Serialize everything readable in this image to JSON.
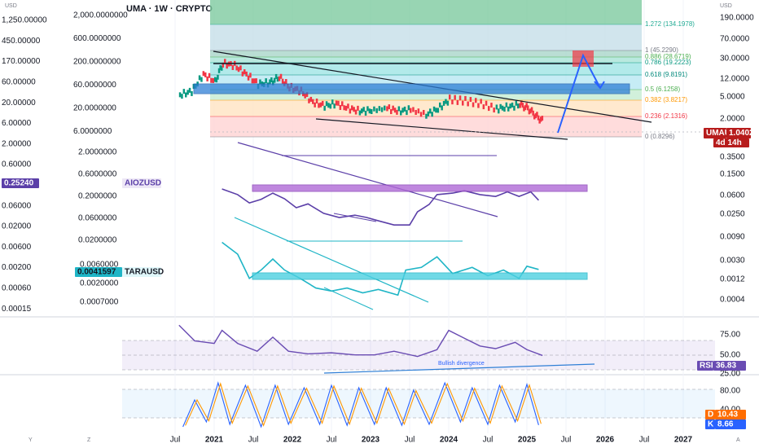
{
  "header": {
    "symbol_line": "UMA · 1W · CRYPTO"
  },
  "colors": {
    "uma_up": "#089981",
    "uma_down": "#f23645",
    "uma_line": "#131722",
    "aioz": "#5b3fa8",
    "tara": "#1fb5c6",
    "box_purple": "#b06ad6",
    "box_blue": "#2f7fd6",
    "rsi_line": "#6a4cb3",
    "stoch_k": "#2962ff",
    "stoch_d": "#ff9800",
    "target_red": "#f23645",
    "arrow_blue": "#2962ff"
  },
  "axes": {
    "left_units": "USD",
    "right_units": "USD",
    "left_outer_ticks": [
      "1,250.00000",
      "450.00000",
      "170.00000",
      "60.00000",
      "20.00000",
      "6.00000",
      "2.00000",
      "0.60000",
      "0.20000",
      "0.06000",
      "0.02000",
      "0.00600",
      "0.00200",
      "0.00060",
      "0.00015"
    ],
    "left_inner_ticks_uma": [
      "2,000.0000000",
      "600.0000000",
      "200.0000000",
      "60.0000000",
      "20.0000000",
      "6.0000000"
    ],
    "left_inner_ticks_aioz": [
      "2.0000000",
      "0.6000000",
      "0.2000000",
      "0.0600000",
      "0.0200000"
    ],
    "left_inner_ticks_tara": [
      "0.0060000",
      "0.0020000",
      "0.0007000"
    ],
    "right_ticks_main": [
      "190.0000",
      "70.0000",
      "30.0000",
      "12.0000",
      "5.0000",
      "2.0000",
      "0.3500",
      "0.1500",
      "0.0600",
      "0.0250",
      "0.0090",
      "0.0030",
      "0.0012",
      "0.0004"
    ],
    "rsi_ticks": [
      "75.00",
      "50.00",
      "25.00"
    ],
    "stoch_ticks": [
      "80.00",
      "40.00"
    ],
    "time_labels": [
      "Jul",
      "2021",
      "Jul",
      "2022",
      "Jul",
      "2023",
      "Jul",
      "2024",
      "Jul",
      "2025",
      "Jul",
      "2026",
      "Jul",
      "2027"
    ],
    "corner_left": [
      "Y",
      "Z"
    ],
    "corner_right": "A"
  },
  "badges": {
    "uma_name": "UMAUSD",
    "uma_price": "1.0402",
    "uma_countdown": "4d 14h",
    "aioz_name": "AIOZUSD",
    "aioz_price": "0.25240",
    "tara_name": "TARAUSD",
    "tara_price": "0.0041597",
    "rsi_name": "RSI",
    "rsi_value": "36.83",
    "stoch_d_name": "D",
    "stoch_d_value": "10.43",
    "stoch_k_name": "K",
    "stoch_k_value": "8.66"
  },
  "fib_levels": [
    {
      "label": "1.272 (134.1978)",
      "color": "#22ab94"
    },
    {
      "label": "1 (45.2290)",
      "color": "#787b86"
    },
    {
      "label": "0.886 (28.6719)",
      "color": "#4caf50"
    },
    {
      "label": "0.786 (19.2223)",
      "color": "#089981"
    },
    {
      "label": "0.618 (9.8191)",
      "color": "#00897b"
    },
    {
      "label": "0.5 (6.1258)",
      "color": "#4caf50"
    },
    {
      "label": "0.382 (3.8217)",
      "color": "#ff9800"
    },
    {
      "label": "0.236 (2.1316)",
      "color": "#f23645"
    },
    {
      "label": "0 (0.8296)",
      "color": "#787b86"
    }
  ],
  "annotations": {
    "rsi_divergence": "Bullish divergence"
  },
  "chart_data": {
    "type": "line",
    "x_unit": "weekly",
    "series": [
      {
        "name": "UMAUSD",
        "points": [
          [
            2020.55,
            5.5
          ],
          [
            2020.7,
            7
          ],
          [
            2020.85,
            20
          ],
          [
            2021.0,
            13
          ],
          [
            2021.1,
            40
          ],
          [
            2021.25,
            35
          ],
          [
            2021.4,
            20
          ],
          [
            2021.55,
            11
          ],
          [
            2021.7,
            12
          ],
          [
            2021.82,
            17
          ],
          [
            2021.95,
            9
          ],
          [
            2022.1,
            7
          ],
          [
            2022.25,
            3.5
          ],
          [
            2022.4,
            2.8
          ],
          [
            2022.55,
            3.2
          ],
          [
            2022.7,
            2.4
          ],
          [
            2022.85,
            2.0
          ],
          [
            2023.0,
            2.1
          ],
          [
            2023.2,
            2.4
          ],
          [
            2023.35,
            2.0
          ],
          [
            2023.5,
            2.2
          ],
          [
            2023.7,
            1.6
          ],
          [
            2023.85,
            2.3
          ],
          [
            2024.0,
            4.2
          ],
          [
            2024.2,
            3.8
          ],
          [
            2024.4,
            3.2
          ],
          [
            2024.6,
            2.3
          ],
          [
            2024.75,
            2.6
          ],
          [
            2024.9,
            3.0
          ],
          [
            2025.0,
            2.4
          ],
          [
            2025.1,
            1.5
          ],
          [
            2025.2,
            1.04
          ]
        ]
      },
      {
        "name": "AIOZUSD",
        "points": [
          [
            2021.1,
            1.0
          ],
          [
            2021.3,
            0.5
          ],
          [
            2021.45,
            0.18
          ],
          [
            2021.6,
            0.28
          ],
          [
            2021.75,
            0.6
          ],
          [
            2021.9,
            0.3
          ],
          [
            2022.05,
            0.1
          ],
          [
            2022.2,
            0.16
          ],
          [
            2022.4,
            0.05
          ],
          [
            2022.6,
            0.03
          ],
          [
            2022.8,
            0.04
          ],
          [
            2022.95,
            0.03
          ],
          [
            2023.1,
            0.02
          ],
          [
            2023.3,
            0.012
          ],
          [
            2023.5,
            0.012
          ],
          [
            2023.6,
            0.06
          ],
          [
            2023.75,
            0.15
          ],
          [
            2023.85,
            0.5
          ],
          [
            2024.05,
            0.6
          ],
          [
            2024.2,
            0.8
          ],
          [
            2024.4,
            0.5
          ],
          [
            2024.6,
            0.4
          ],
          [
            2024.75,
            0.7
          ],
          [
            2024.9,
            0.4
          ],
          [
            2025.05,
            0.7
          ],
          [
            2025.15,
            0.25
          ]
        ]
      },
      {
        "name": "TARAUSD",
        "points": [
          [
            2021.1,
            0.04
          ],
          [
            2021.3,
            0.015
          ],
          [
            2021.45,
            0.002
          ],
          [
            2021.6,
            0.004
          ],
          [
            2021.75,
            0.01
          ],
          [
            2021.9,
            0.004
          ],
          [
            2022.1,
            0.002
          ],
          [
            2022.3,
            0.0009
          ],
          [
            2022.5,
            0.0007
          ],
          [
            2022.7,
            0.0009
          ],
          [
            2022.9,
            0.0006
          ],
          [
            2023.1,
            0.0008
          ],
          [
            2023.35,
            0.0005
          ],
          [
            2023.45,
            0.004
          ],
          [
            2023.65,
            0.005
          ],
          [
            2023.85,
            0.012
          ],
          [
            2024.05,
            0.003
          ],
          [
            2024.3,
            0.005
          ],
          [
            2024.5,
            0.0025
          ],
          [
            2024.7,
            0.004
          ],
          [
            2024.9,
            0.002
          ],
          [
            2025.0,
            0.0055
          ],
          [
            2025.15,
            0.0042
          ]
        ]
      },
      {
        "name": "RSI",
        "points": [
          [
            2020.55,
            95
          ],
          [
            2020.75,
            65
          ],
          [
            2021.0,
            60
          ],
          [
            2021.1,
            85
          ],
          [
            2021.3,
            60
          ],
          [
            2021.55,
            45
          ],
          [
            2021.75,
            72
          ],
          [
            2021.95,
            45
          ],
          [
            2022.2,
            40
          ],
          [
            2022.5,
            42
          ],
          [
            2022.8,
            38
          ],
          [
            2023.05,
            38
          ],
          [
            2023.3,
            45
          ],
          [
            2023.6,
            35
          ],
          [
            2023.85,
            48
          ],
          [
            2024.0,
            85
          ],
          [
            2024.2,
            70
          ],
          [
            2024.4,
            55
          ],
          [
            2024.6,
            50
          ],
          [
            2024.85,
            62
          ],
          [
            2025.0,
            48
          ],
          [
            2025.2,
            36.83
          ]
        ]
      },
      {
        "name": "Stoch K",
        "points": [
          [
            2020.6,
            5
          ],
          [
            2020.75,
            60
          ],
          [
            2020.9,
            15
          ],
          [
            2021.05,
            95
          ],
          [
            2021.2,
            10
          ],
          [
            2021.4,
            90
          ],
          [
            2021.6,
            5
          ],
          [
            2021.78,
            90
          ],
          [
            2021.95,
            10
          ],
          [
            2022.15,
            85
          ],
          [
            2022.35,
            10
          ],
          [
            2022.5,
            90
          ],
          [
            2022.7,
            8
          ],
          [
            2022.85,
            85
          ],
          [
            2023.05,
            10
          ],
          [
            2023.2,
            85
          ],
          [
            2023.4,
            8
          ],
          [
            2023.55,
            80
          ],
          [
            2023.75,
            10
          ],
          [
            2023.95,
            95
          ],
          [
            2024.15,
            15
          ],
          [
            2024.3,
            85
          ],
          [
            2024.5,
            10
          ],
          [
            2024.65,
            90
          ],
          [
            2024.85,
            15
          ],
          [
            2025.0,
            92
          ],
          [
            2025.15,
            8.66
          ]
        ]
      }
    ]
  }
}
